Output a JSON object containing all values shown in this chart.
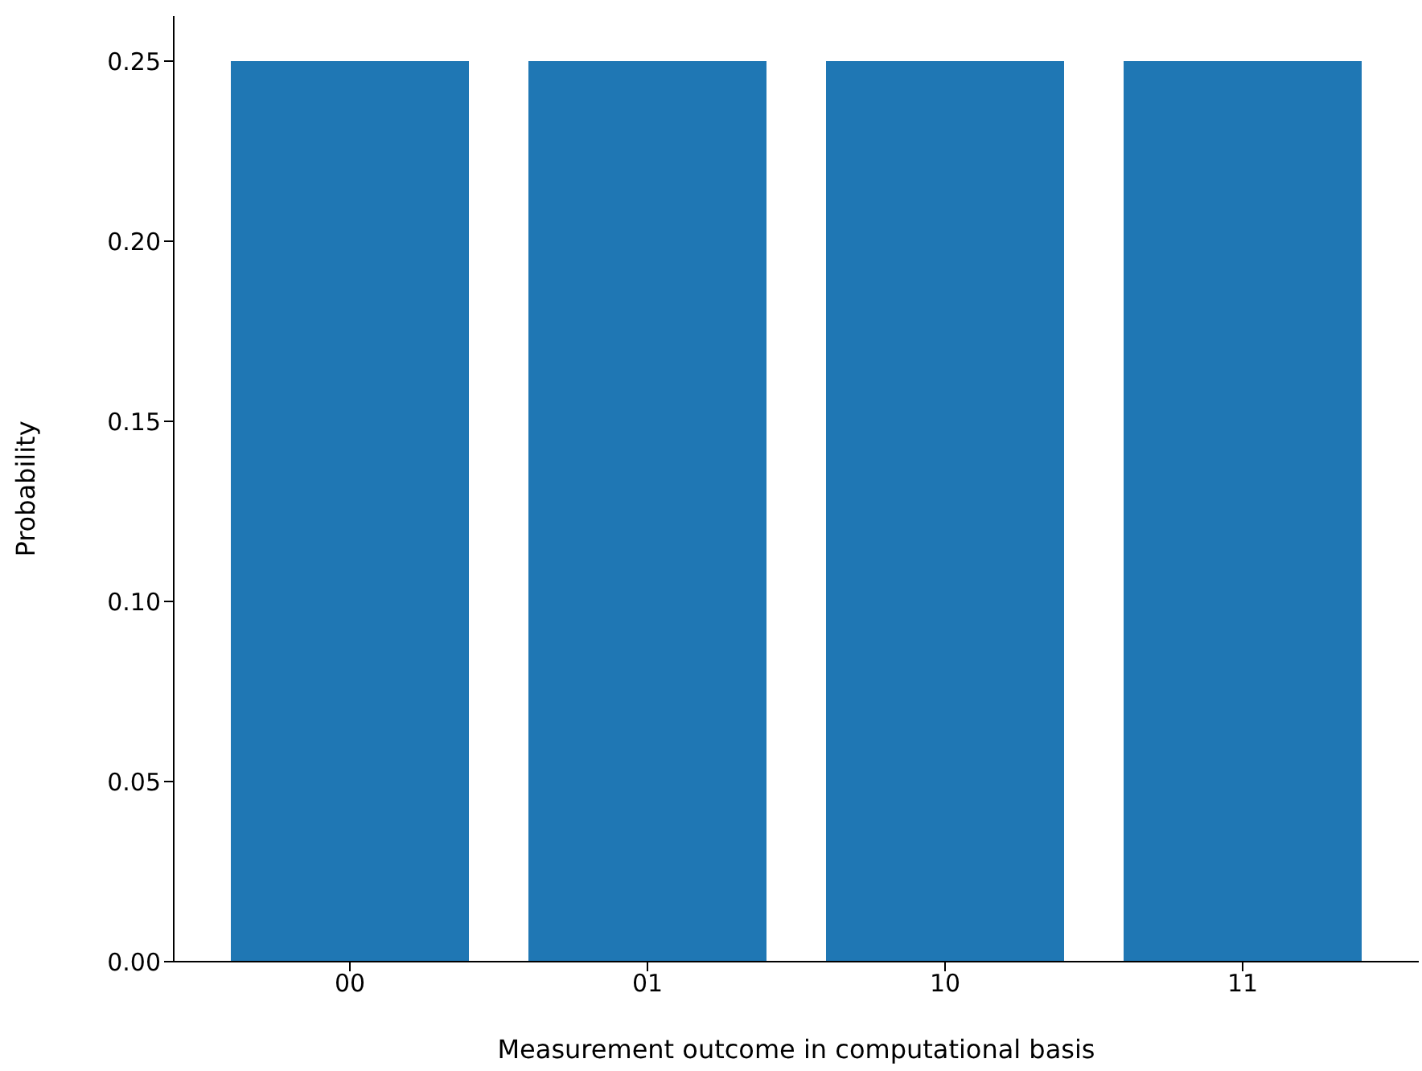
{
  "chart_data": {
    "type": "bar",
    "xlabel": "Measurement outcome in computational basis",
    "ylabel": "Probability",
    "categories": [
      "00",
      "01",
      "10",
      "11"
    ],
    "values": [
      0.25,
      0.25,
      0.25,
      0.25
    ],
    "color": "#1f77b4",
    "ylim": [
      0,
      0.2625
    ],
    "yticks": [
      {
        "value": 0,
        "label": "0.00"
      },
      {
        "value": 0.05,
        "label": "0.05"
      },
      {
        "value": 0.1,
        "label": "0.10"
      },
      {
        "value": 0.15,
        "label": "0.15"
      },
      {
        "value": 0.2,
        "label": "0.20"
      },
      {
        "value": 0.25,
        "label": "0.25"
      }
    ],
    "grid": false
  }
}
